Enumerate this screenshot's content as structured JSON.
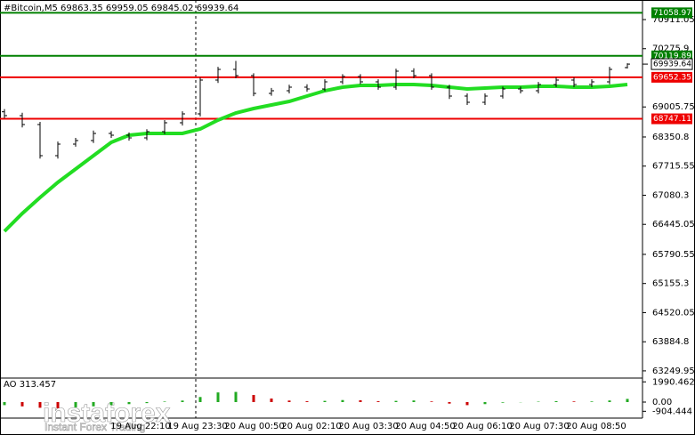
{
  "chart_data": {
    "type": "ohlc",
    "title": "#Bitcoin,M5  69863.35 69959.05 69845.02 69939.64",
    "ylim": [
      63093,
      71338
    ],
    "yticks": [
      70911.05,
      70275.9,
      69005.75,
      68350.8,
      67715.55,
      67080.3,
      66445.05,
      65790.55,
      65155.3,
      64520.05,
      63884.8,
      63249.95
    ],
    "x_labels": [
      "19 Aug 22:10",
      "19 Aug 23:30",
      "20 Aug 00:50",
      "20 Aug 02:10",
      "20 Aug 03:30",
      "20 Aug 04:50",
      "20 Aug 06:10",
      "20 Aug 07:30",
      "20 Aug 08:50"
    ],
    "open": [
      68900,
      68816,
      68622,
      67943,
      68195,
      68273,
      68428,
      68389,
      68331,
      68467,
      68661,
      68855,
      69592,
      69825,
      69689,
      69301,
      69359,
      69437,
      69398,
      69553,
      69669,
      69553,
      69437,
      69786,
      69689,
      69437,
      69243,
      69107,
      69243,
      69398,
      69359,
      69495,
      69592,
      69495,
      69553,
      69863.35
    ],
    "high": [
      68960,
      68880,
      68680,
      68250,
      68330,
      68490,
      68480,
      68450,
      68520,
      68720,
      68910,
      69650,
      69880,
      70010,
      69740,
      69420,
      69490,
      69500,
      69610,
      69720,
      69720,
      69610,
      69840,
      69850,
      69740,
      69490,
      69300,
      69300,
      69450,
      69450,
      69550,
      69650,
      69650,
      69610,
      69880,
      69959.05
    ],
    "low": [
      68760,
      68560,
      67880,
      67880,
      68140,
      68220,
      68330,
      68270,
      68280,
      68410,
      68600,
      68800,
      69530,
      69630,
      69240,
      69250,
      69300,
      69340,
      69350,
      69500,
      69500,
      69380,
      69380,
      69630,
      69380,
      69180,
      69050,
      69050,
      69190,
      69300,
      69300,
      69440,
      69440,
      69440,
      69500,
      69845.02
    ],
    "close": [
      68816,
      68622,
      67943,
      68195,
      68273,
      68428,
      68389,
      68331,
      68467,
      68661,
      68855,
      69592,
      69825,
      69689,
      69301,
      69359,
      69437,
      69398,
      69553,
      69669,
      69553,
      69437,
      69786,
      69689,
      69437,
      69243,
      69107,
      69243,
      69398,
      69359,
      69495,
      69592,
      69495,
      69553,
      69825,
      69939.64
    ],
    "ma": {
      "color": "#22dd22",
      "values": [
        66294,
        66682,
        67031,
        67361,
        67652,
        67943,
        68234,
        68389,
        68428,
        68428,
        68428,
        68525,
        68719,
        68874,
        68971,
        69049,
        69126,
        69243,
        69359,
        69437,
        69476,
        69476,
        69495,
        69495,
        69476,
        69437,
        69398,
        69417,
        69437,
        69437,
        69456,
        69456,
        69437,
        69437,
        69456,
        69495
      ]
    },
    "levels": [
      {
        "value": 71058.97,
        "label": "71058.97",
        "color": "#008000"
      },
      {
        "value": 70119.89,
        "label": "70119.89",
        "color": "#008000"
      },
      {
        "value": 69652.35,
        "label": "69652.35",
        "color": "#ee0000"
      },
      {
        "value": 68747.11,
        "label": "68747.11",
        "color": "#ee0000"
      }
    ],
    "current_price": {
      "value": 69939.64,
      "label": "69939.64"
    },
    "indicator": {
      "name": "AO 313.457",
      "ylim": [
        -1400,
        2100
      ],
      "yticks": [
        {
          "value": 1990.462,
          "label": "1990.462"
        },
        {
          "value": 0,
          "label": "0.00"
        },
        {
          "value": -904.444,
          "label": "-904.444"
        }
      ],
      "values": [
        -300,
        -420,
        -560,
        -600,
        -520,
        -420,
        -300,
        -200,
        -100,
        50,
        150,
        500,
        950,
        1000,
        700,
        350,
        150,
        80,
        120,
        200,
        180,
        80,
        120,
        160,
        60,
        -150,
        -300,
        -200,
        -60,
        -20,
        40,
        90,
        60,
        60,
        160,
        313.457
      ]
    },
    "watermark": {
      "brand": "instaforex",
      "tagline": "Instant Forex Trading"
    }
  }
}
